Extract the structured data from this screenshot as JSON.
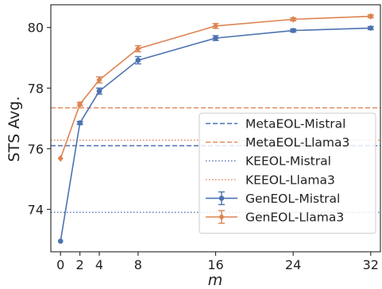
{
  "chart_data": {
    "type": "line",
    "xlabel": "m",
    "ylabel": "STS Avg.",
    "x": [
      0,
      2,
      4,
      8,
      16,
      24,
      32
    ],
    "xticks": [
      "0",
      "2",
      "4",
      "8",
      "16",
      "24",
      "32"
    ],
    "yticks": [
      "74",
      "76",
      "78",
      "80"
    ],
    "xlim": [
      -1,
      33
    ],
    "ylim": [
      72.6,
      80.75
    ],
    "grid": false,
    "legend_position": "lower-right",
    "series": [
      {
        "name": "GenEOL-Mistral",
        "color": "#4c72b0",
        "marker": "circle",
        "values": [
          72.95,
          76.85,
          77.9,
          78.92,
          79.65,
          79.9,
          79.98
        ],
        "error": [
          0.0,
          0.05,
          0.1,
          0.12,
          0.08,
          0.05,
          0.05
        ]
      },
      {
        "name": "GenEOL-Llama3",
        "color": "#dd8452",
        "marker": "diamond",
        "values": [
          75.68,
          77.47,
          78.27,
          79.3,
          80.05,
          80.27,
          80.37
        ],
        "error": [
          0.0,
          0.06,
          0.1,
          0.1,
          0.08,
          0.05,
          0.05
        ]
      }
    ],
    "reference_lines": [
      {
        "name": "MetaEOL-Mistral",
        "value": 76.1,
        "color": "#4c72b0",
        "style": "dashed"
      },
      {
        "name": "MetaEOL-Llama3",
        "value": 77.35,
        "color": "#dd8452",
        "style": "dashed"
      },
      {
        "name": "KEEOL-Mistral",
        "value": 73.9,
        "color": "#4c72b0",
        "style": "dotted"
      },
      {
        "name": "KEEOL-Llama3",
        "value": 76.28,
        "color": "#dd8452",
        "style": "dotted"
      }
    ]
  }
}
